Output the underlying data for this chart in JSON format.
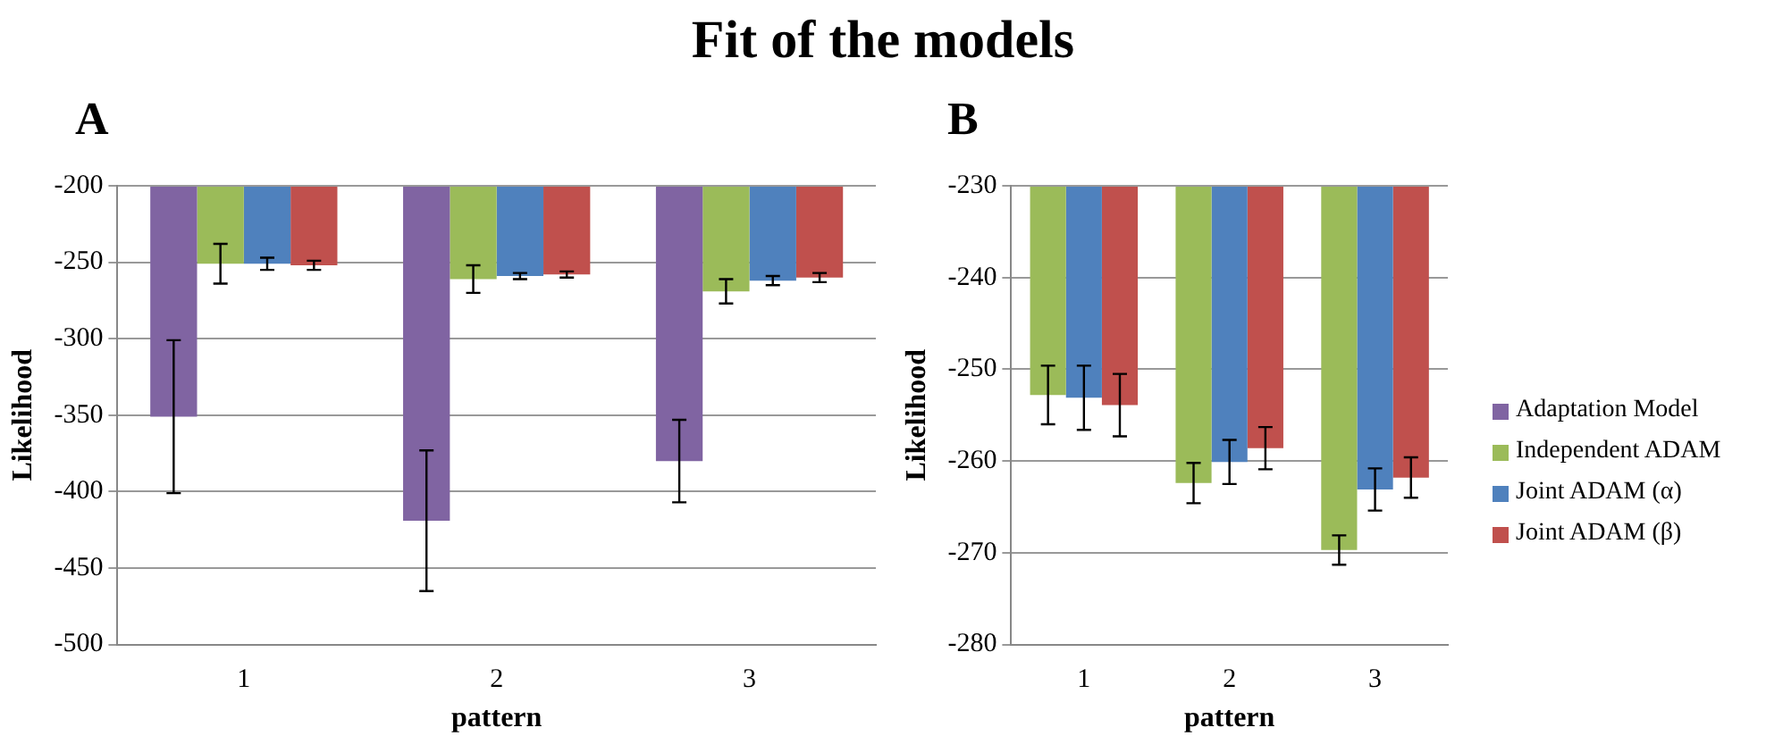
{
  "chart_data": [
    {
      "type": "bar",
      "title": "Fit of the models",
      "subtitle": "A",
      "xlabel": "pattern",
      "ylabel": "Likelihood",
      "categories": [
        "1",
        "2",
        "3"
      ],
      "ylim": [
        -500,
        -200
      ],
      "yticks": [
        -500,
        -450,
        -400,
        -350,
        -300,
        -250,
        -200
      ],
      "grid": "y",
      "legend": false,
      "series": [
        {
          "color": "#8064a2",
          "values": [
            -351,
            -419,
            -380
          ],
          "errors": [
            50,
            46,
            27
          ]
        },
        {
          "color": "#9bbb59",
          "values": [
            -251,
            -261,
            -269
          ],
          "errors": [
            13,
            9,
            8
          ]
        },
        {
          "color": "#4f81bd",
          "values": [
            -251,
            -259,
            -262
          ],
          "errors": [
            4,
            2,
            3
          ]
        },
        {
          "color": "#c0504d",
          "values": [
            -252,
            -258,
            -260
          ],
          "errors": [
            3,
            2,
            3
          ]
        }
      ]
    },
    {
      "type": "bar",
      "subtitle": "B",
      "xlabel": "pattern",
      "ylabel": "Likelihood",
      "categories": [
        "1",
        "2",
        "3"
      ],
      "ylim": [
        -280,
        -230
      ],
      "yticks": [
        -280,
        -270,
        -260,
        -250,
        -240,
        -230
      ],
      "grid": "y",
      "legend": "right",
      "series": [
        {
          "name": "Adaptation Model",
          "color": "#8064a2",
          "values": [
            null,
            null,
            null
          ]
        },
        {
          "name": "Independent ADAM",
          "color": "#9bbb59",
          "values": [
            -252.8,
            -262.4,
            -269.7
          ],
          "errors": [
            3.2,
            2.2,
            1.6
          ]
        },
        {
          "name": "Joint ADAM (α)",
          "color": "#4f81bd",
          "values": [
            -253.1,
            -260.1,
            -263.1
          ],
          "errors": [
            3.5,
            2.4,
            2.3
          ]
        },
        {
          "name": "Joint ADAM (β)",
          "color": "#c0504d",
          "values": [
            -253.9,
            -258.6,
            -261.8
          ],
          "errors": [
            3.4,
            2.3,
            2.2
          ]
        }
      ]
    }
  ]
}
